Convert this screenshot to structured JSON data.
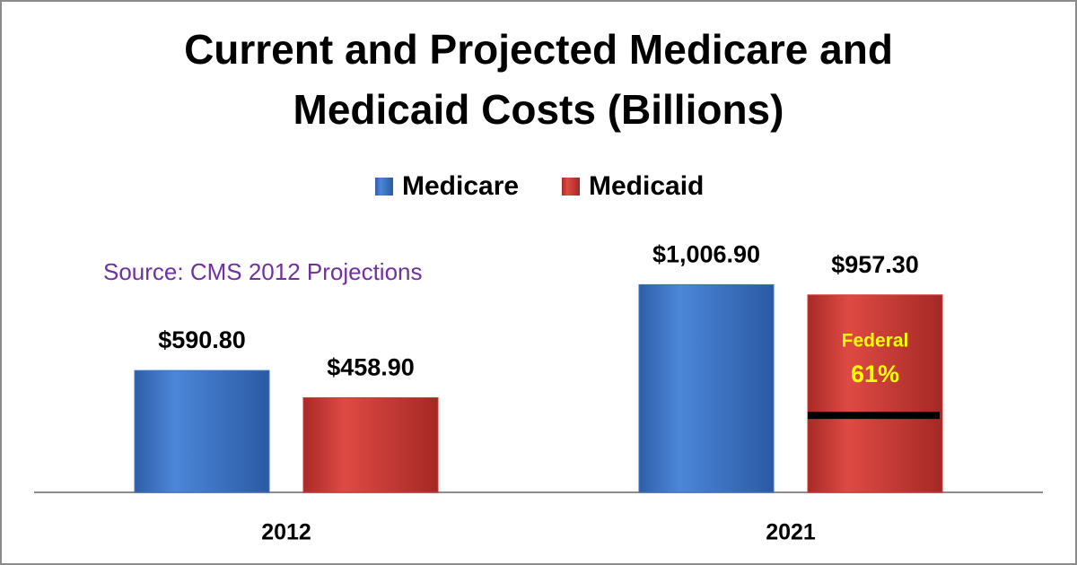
{
  "chart_data": {
    "type": "bar",
    "title": "Current and Projected Medicare and Medicaid Costs (Billions)",
    "categories": [
      "2012",
      "2021"
    ],
    "series": [
      {
        "name": "Medicare",
        "color": "#3f76c8",
        "values": [
          590.8,
          1006.9
        ],
        "value_labels": [
          "$590.80",
          "$1,006.90"
        ]
      },
      {
        "name": "Medicaid",
        "color": "#d23a35",
        "values": [
          458.9,
          957.3
        ],
        "value_labels": [
          "$458.90",
          "$957.30"
        ]
      }
    ],
    "ylim": [
      0,
      1200
    ],
    "source": "Source: CMS 2012 Projections",
    "annotation": {
      "label": "Federal",
      "value": 61,
      "value_label": "61%"
    }
  }
}
